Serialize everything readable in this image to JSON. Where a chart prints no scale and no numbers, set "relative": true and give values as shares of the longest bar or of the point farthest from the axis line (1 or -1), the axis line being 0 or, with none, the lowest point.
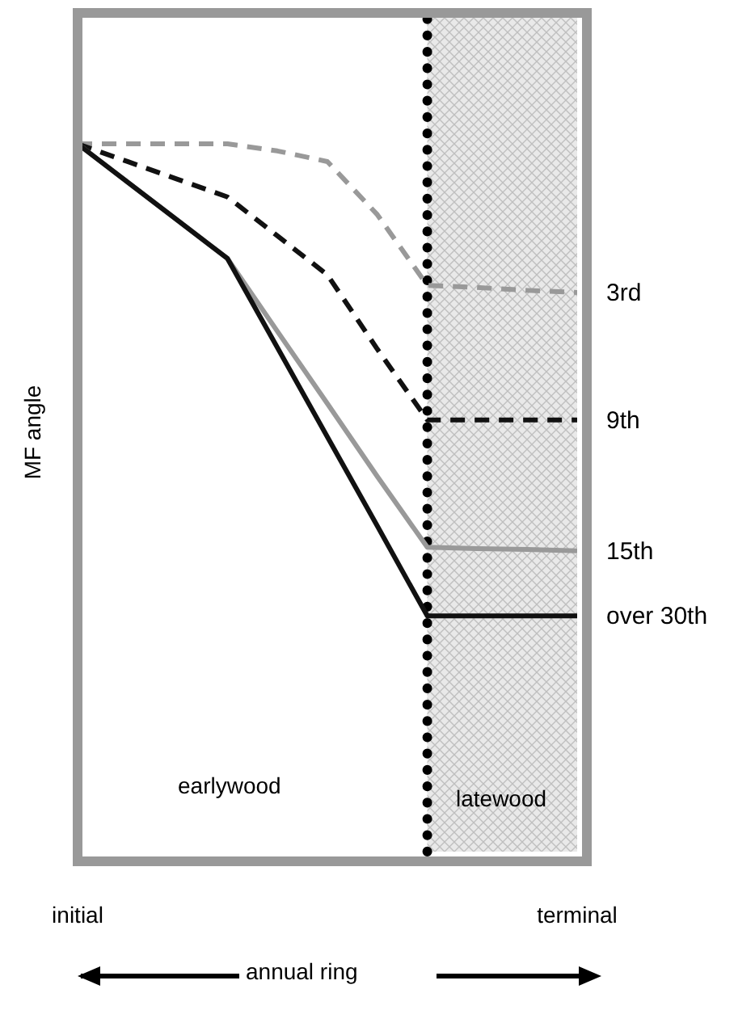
{
  "chart_data": {
    "type": "line",
    "relative": true,
    "ylabel": "MF angle",
    "xlabel": "annual ring",
    "legend": false,
    "marker": "none",
    "categories": [
      "initial",
      null,
      null,
      null,
      null,
      null,
      null,
      null,
      null,
      null,
      "terminal"
    ],
    "annotations": [
      "earlywood",
      "latewood"
    ],
    "series": [
      {
        "name": "3rd",
        "color": "#999999",
        "line_style": "dashed",
        "values": [
          1,
          1,
          1,
          1,
          0.99,
          0.975,
          0.9,
          0.8,
          0.797,
          0.793,
          0.79
        ]
      },
      {
        "name": "9th",
        "color": "#111111",
        "line_style": "dashed",
        "values": [
          1,
          0.975,
          0.95,
          0.925,
          0.87,
          0.815,
          0.71,
          0.61,
          0.61,
          0.61,
          0.61
        ]
      },
      {
        "name": "15th",
        "color": "#999999",
        "line_style": "solid",
        "values": [
          1,
          0.946,
          0.892,
          0.838,
          0.735,
          0.633,
          0.53,
          0.43,
          0.428,
          0.427,
          0.425
        ]
      },
      {
        "name": "over 30th",
        "color": "#111111",
        "line_style": "solid",
        "values": [
          1,
          0.946,
          0.892,
          0.838,
          0.712,
          0.586,
          0.46,
          0.333,
          0.333,
          0.333,
          0.333
        ]
      }
    ]
  }
}
